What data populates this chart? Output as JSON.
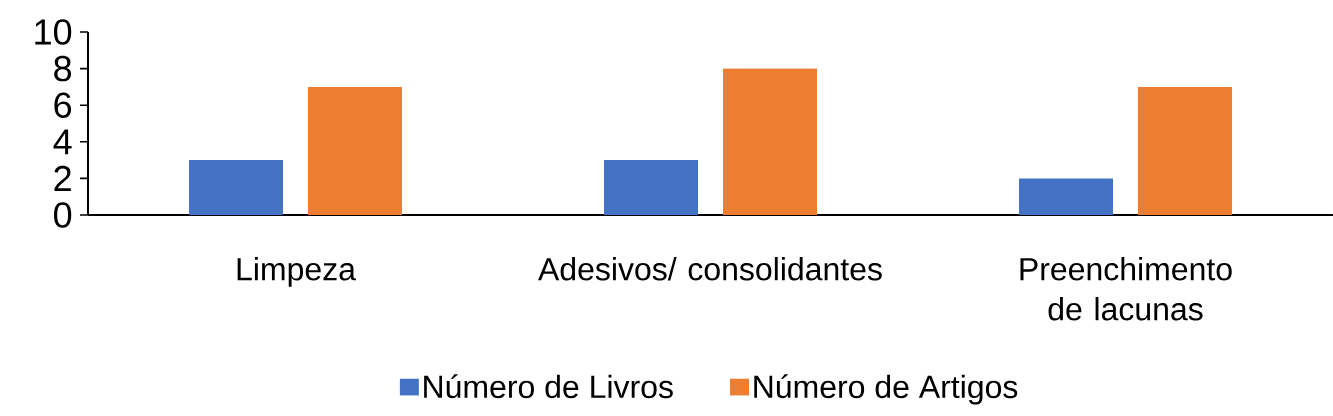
{
  "chart_data": {
    "type": "bar",
    "categories": [
      "Limpeza",
      "Adesivos/ consolidantes",
      "Preenchimento de lacunas"
    ],
    "series": [
      {
        "name": "Número de Livros",
        "color": "#4472c4",
        "values": [
          3,
          3,
          2
        ]
      },
      {
        "name": "Número de Artigos",
        "color": "#ed7d31",
        "values": [
          7,
          8,
          7
        ]
      }
    ],
    "ylim": [
      0,
      10
    ],
    "yticks": [
      0,
      2,
      4,
      6,
      8,
      10
    ],
    "grid": false,
    "legend": "bottom"
  }
}
